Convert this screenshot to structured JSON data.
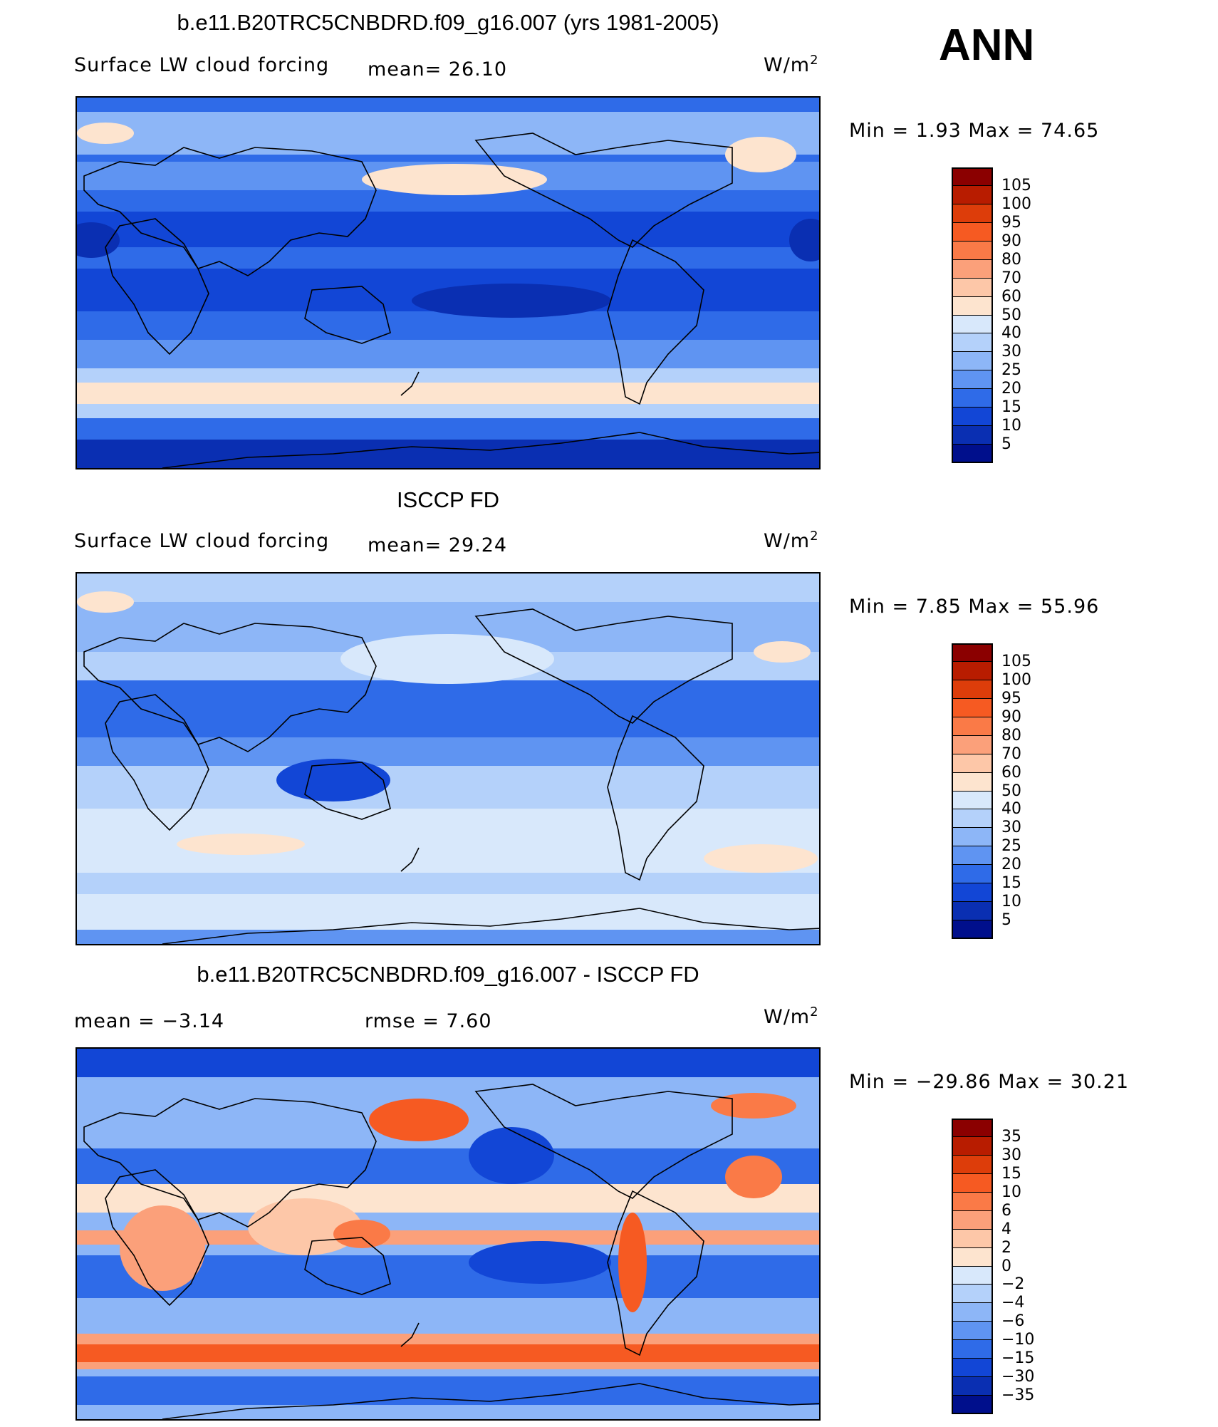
{
  "header": {
    "season": "ANN"
  },
  "panels": [
    {
      "title": "b.e11.B20TRC5CNBDRD.f09_g16.007 (yrs 1981-2005)",
      "variable": "Surface LW cloud forcing",
      "stat1": "mean=  26.10",
      "stat2": "",
      "units": "W/m",
      "units_sup": "2",
      "minmax": "Min =    1.93 Max =   74.65",
      "colorbar_labels": [
        "105",
        "100",
        "95",
        "90",
        "80",
        "70",
        "60",
        "50",
        "40",
        "30",
        "25",
        "20",
        "15",
        "10",
        "5"
      ],
      "palette": "abs"
    },
    {
      "title": "ISCCP FD",
      "variable": "Surface LW cloud forcing",
      "stat1": "mean=  29.24",
      "stat2": "",
      "units": "W/m",
      "units_sup": "2",
      "minmax": "Min =    7.85 Max =   55.96",
      "colorbar_labels": [
        "105",
        "100",
        "95",
        "90",
        "80",
        "70",
        "60",
        "50",
        "40",
        "30",
        "25",
        "20",
        "15",
        "10",
        "5"
      ],
      "palette": "abs"
    },
    {
      "title": "b.e11.B20TRC5CNBDRD.f09_g16.007 - ISCCP FD",
      "variable": "",
      "stat1": "mean =   −3.14",
      "stat2": "rmse =    7.60",
      "units": "W/m",
      "units_sup": "2",
      "minmax": "Min = −29.86 Max =   30.21",
      "colorbar_labels": [
        "35",
        "30",
        "15",
        "10",
        "6",
        "4",
        "2",
        "0",
        "−2",
        "−4",
        "−6",
        "−10",
        "−15",
        "−30",
        "−35"
      ],
      "palette": "diff"
    }
  ],
  "colors": {
    "scale": [
      "#8b0000",
      "#b81c00",
      "#dd3d0a",
      "#f65a22",
      "#fa7a47",
      "#fba07a",
      "#fdc7a8",
      "#fde4cf",
      "#d8e8fb",
      "#b4d1fa",
      "#8db6f7",
      "#5f94f2",
      "#2f6be8",
      "#1246d6",
      "#0a2fb2",
      "#000f8c"
    ]
  }
}
